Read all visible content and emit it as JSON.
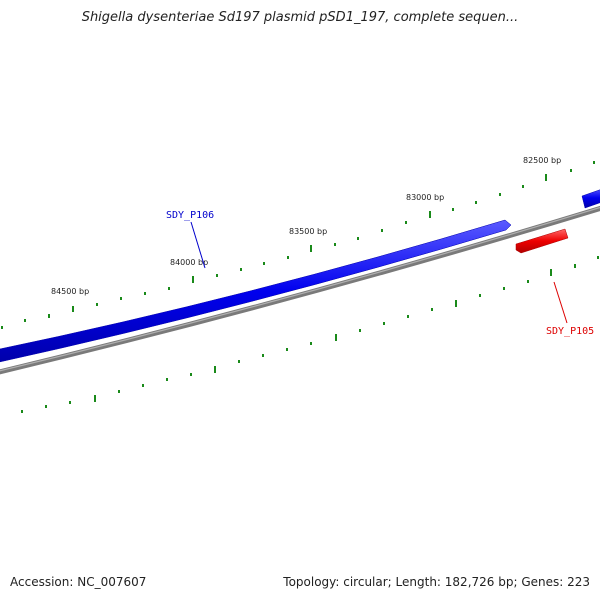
{
  "title": "Shigella dysenteriae Sd197 plasmid pSD1_197, complete sequen...",
  "tick_labels": [
    "82500 bp",
    "83000 bp",
    "83500 bp",
    "84000 bp",
    "84500 bp"
  ],
  "genes": [
    {
      "name": "SDY_P106",
      "strand": "forward",
      "color": "#0000ff"
    },
    {
      "name": "SDY_P105",
      "strand": "reverse",
      "color": "#ff0000"
    }
  ],
  "colors": {
    "forward_strand": "#1a1aff",
    "reverse_strand": "#e60000",
    "backbone": "#808080",
    "ticks": "#1a8a1a"
  },
  "footer": {
    "accession": "Accession: NC_007607",
    "summary": "Topology: circular; Length: 182,726 bp; Genes: 223"
  }
}
